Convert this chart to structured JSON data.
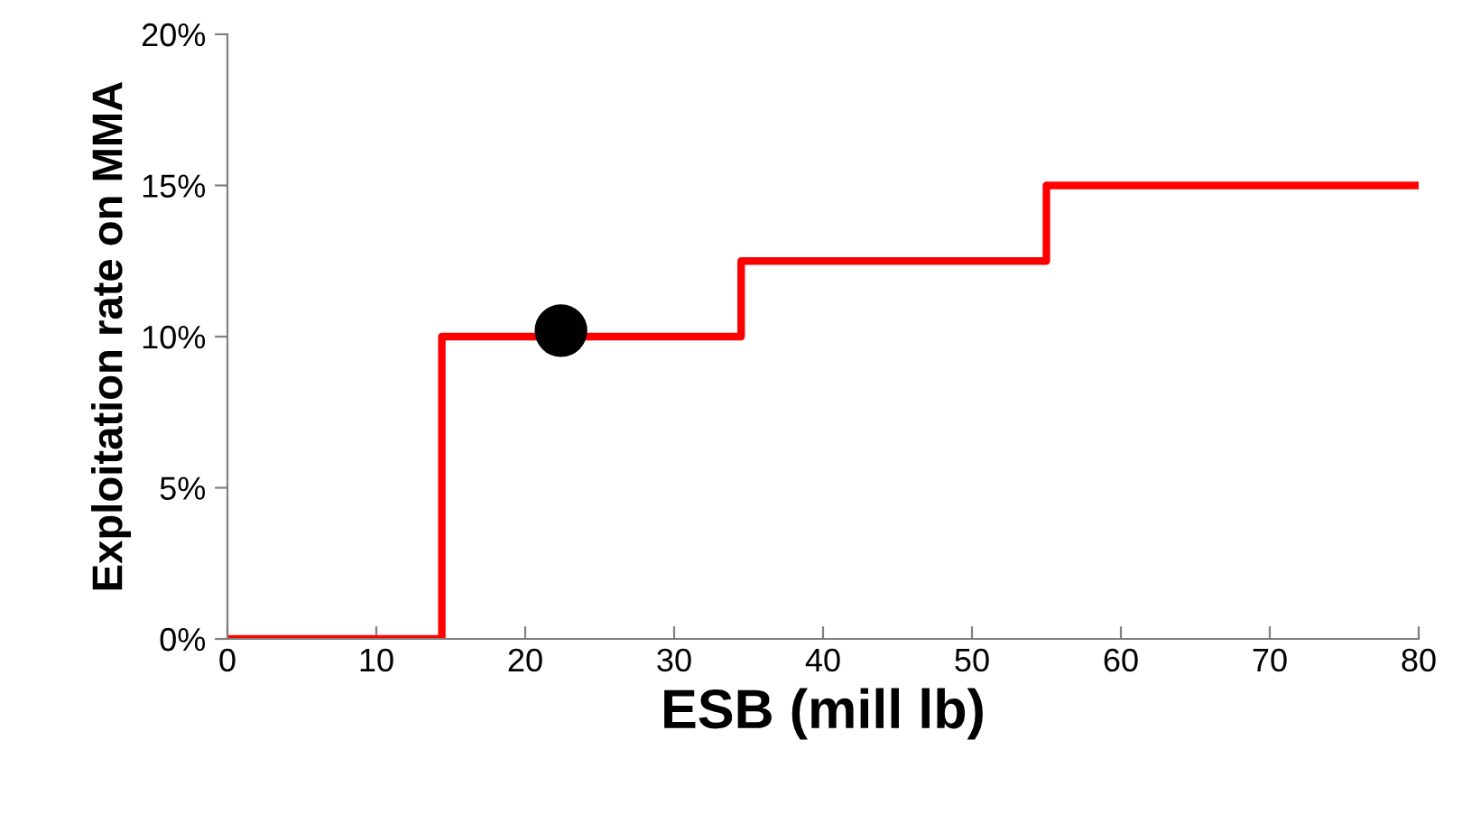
{
  "chart_data": {
    "type": "step",
    "xlabel": "ESB (mill lb)",
    "ylabel": "Exploitation rate on MMA",
    "series": [
      {
        "color": "#ff0000",
        "x": [
          0,
          14.4,
          34.5,
          55,
          80
        ],
        "values": [
          0,
          10,
          12.5,
          15,
          15
        ],
        "marker": "none",
        "line_style": "solid"
      },
      {
        "type": "scatter",
        "color": "#000000",
        "x": [
          22.4
        ],
        "values": [
          10.2
        ],
        "marker": "circle"
      }
    ],
    "xlim": [
      0,
      80
    ],
    "xticks": [
      0,
      10,
      20,
      30,
      40,
      50,
      60,
      70,
      80
    ],
    "ylim": [
      0,
      20
    ],
    "yticks": [
      {
        "value": 0,
        "label": "0%"
      },
      {
        "value": 5,
        "label": "5%"
      },
      {
        "value": 10,
        "label": "10%"
      },
      {
        "value": 15,
        "label": "15%"
      },
      {
        "value": 20,
        "label": "20%"
      }
    ],
    "grid": false,
    "legend": false
  }
}
